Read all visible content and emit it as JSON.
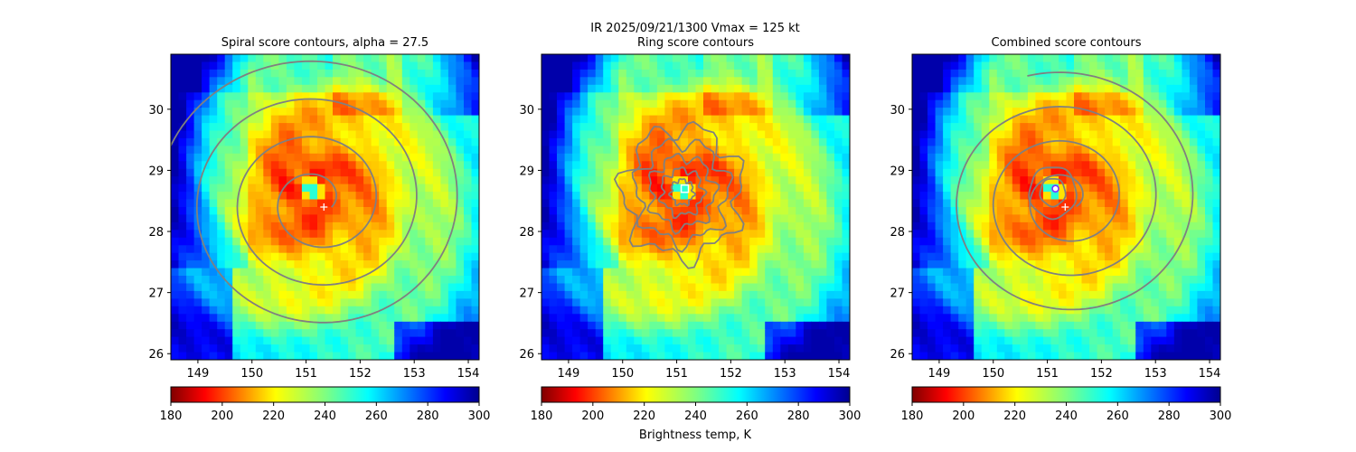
{
  "figure": {
    "suptitle_line1": "IR  2025/09/21/1300    Vmax = 125 kt",
    "colorbar_label": "Brightness temp, K"
  },
  "chart_data": [
    {
      "type": "heatmap",
      "title": "Spiral score contours, alpha = 27.5",
      "xlim": [
        148.5,
        154.2
      ],
      "ylim": [
        25.9,
        30.9
      ],
      "xticks": [
        "149",
        "150",
        "151",
        "152",
        "153",
        "154"
      ],
      "yticks": [
        "26",
        "27",
        "28",
        "29",
        "30"
      ],
      "center_marker": {
        "symbol": "+",
        "lon": 151.33,
        "lat": 28.4
      },
      "eye": {
        "lon": 151.1,
        "lat": 28.7
      },
      "contours": "spiral",
      "colorbar": {
        "vmin": 180,
        "vmax": 300,
        "ticks": [
          "180",
          "200",
          "220",
          "240",
          "260",
          "280",
          "300"
        ],
        "colormap": "jet_r"
      }
    },
    {
      "type": "heatmap",
      "title": "Ring score contours",
      "xlim": [
        148.5,
        154.2
      ],
      "ylim": [
        25.9,
        30.9
      ],
      "xticks": [
        "149",
        "150",
        "151",
        "152",
        "153",
        "154"
      ],
      "yticks": [
        "26",
        "27",
        "28",
        "29",
        "30"
      ],
      "center_marker": {
        "symbol": "square",
        "lon": 151.15,
        "lat": 28.7
      },
      "eye": {
        "lon": 151.1,
        "lat": 28.7
      },
      "contours": "ring",
      "colorbar": {
        "vmin": 180,
        "vmax": 300,
        "ticks": [
          "180",
          "200",
          "220",
          "240",
          "260",
          "280",
          "300"
        ],
        "colormap": "jet_r"
      }
    },
    {
      "type": "heatmap",
      "title": "Combined score contours",
      "xlim": [
        148.5,
        154.2
      ],
      "ylim": [
        25.9,
        30.9
      ],
      "xticks": [
        "149",
        "150",
        "151",
        "152",
        "153",
        "154"
      ],
      "yticks": [
        "26",
        "27",
        "28",
        "29",
        "30"
      ],
      "center_marker": {
        "symbol": "+",
        "lon": 151.33,
        "lat": 28.4
      },
      "best_marker": {
        "symbol": "circle",
        "lon": 151.15,
        "lat": 28.7
      },
      "eye": {
        "lon": 151.1,
        "lat": 28.7
      },
      "contours": "combined",
      "colorbar": {
        "vmin": 180,
        "vmax": 300,
        "ticks": [
          "180",
          "200",
          "220",
          "240",
          "260",
          "280",
          "300"
        ],
        "colormap": "jet_r"
      }
    }
  ],
  "colors": {
    "contour": "#808080",
    "marker": "#ffffff",
    "best_marker_edge": "#7b2fff"
  }
}
